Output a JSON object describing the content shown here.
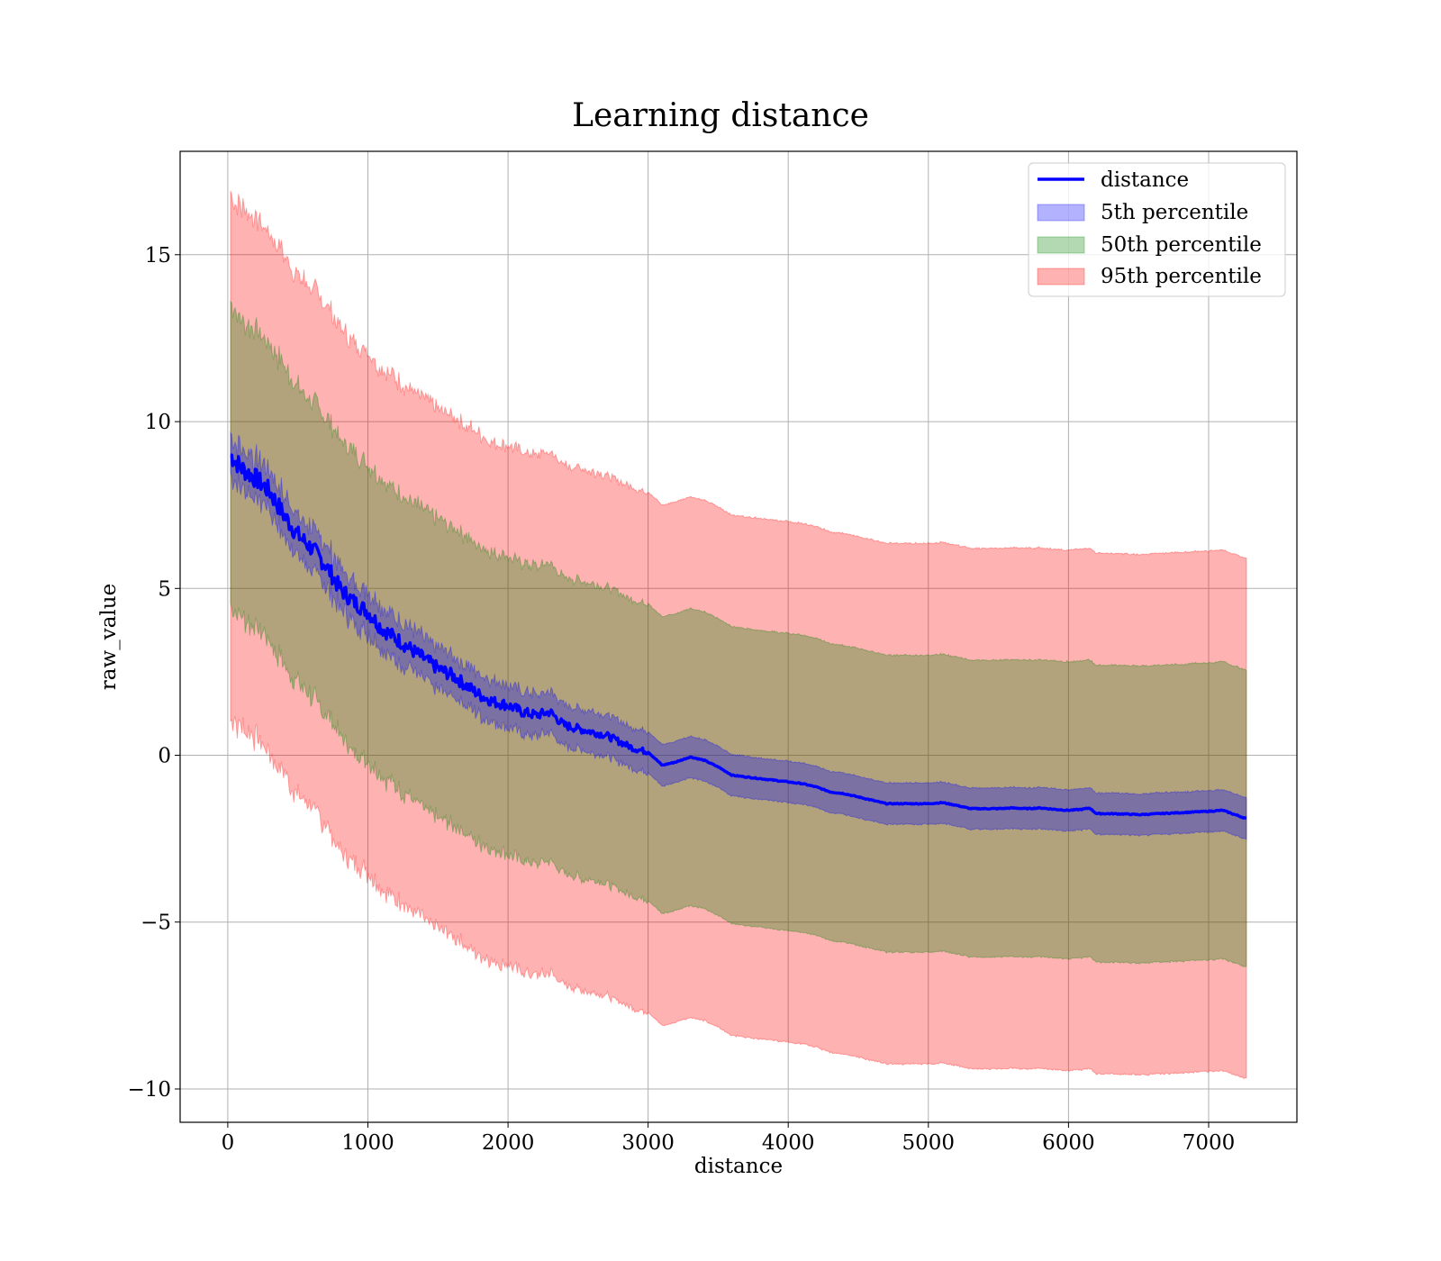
{
  "chart_data": {
    "type": "line",
    "title": "Learning distance",
    "xlabel": "distance",
    "ylabel": "raw_value",
    "xlim": [
      -340,
      7630
    ],
    "ylim": [
      -11,
      18.1
    ],
    "xticks": [
      0,
      1000,
      2000,
      3000,
      4000,
      5000,
      6000,
      7000
    ],
    "xtick_labels": [
      "0",
      "1000",
      "2000",
      "3000",
      "4000",
      "5000",
      "6000",
      "7000"
    ],
    "yticks": [
      -10,
      -5,
      0,
      5,
      10,
      15
    ],
    "ytick_labels": [
      "−10",
      "−5",
      "0",
      "5",
      "10",
      "15"
    ],
    "grid": true,
    "legend_position": "top-right",
    "x": [
      20,
      100,
      200,
      300,
      400,
      500,
      600,
      700,
      800,
      900,
      1000,
      1100,
      1200,
      1300,
      1400,
      1500,
      1600,
      1700,
      1800,
      1900,
      2000,
      2100,
      2200,
      2300,
      2400,
      2500,
      2600,
      2700,
      2800,
      2900,
      3000,
      3100,
      3200,
      3300,
      3400,
      3500,
      3600,
      3700,
      3800,
      3900,
      4000,
      4100,
      4200,
      4300,
      4400,
      4500,
      4600,
      4700,
      4800,
      4900,
      5000,
      5100,
      5200,
      5300,
      5400,
      5500,
      5600,
      5700,
      5800,
      5900,
      6000,
      6100,
      6150,
      6200,
      6300,
      6400,
      6500,
      6600,
      6700,
      6800,
      6900,
      7000,
      7100,
      7270
    ],
    "series": [
      {
        "name": "distance",
        "color": "#0000ff",
        "values": [
          9.0,
          8.6,
          8.3,
          7.9,
          7.2,
          6.6,
          6.2,
          5.7,
          5.0,
          4.6,
          4.3,
          3.8,
          3.5,
          3.2,
          2.9,
          2.6,
          2.4,
          2.1,
          1.8,
          1.6,
          1.5,
          1.3,
          1.2,
          1.3,
          0.9,
          0.8,
          0.7,
          0.6,
          0.4,
          0.2,
          0.1,
          -0.3,
          -0.2,
          -0.05,
          -0.15,
          -0.35,
          -0.6,
          -0.65,
          -0.7,
          -0.75,
          -0.8,
          -0.85,
          -0.95,
          -1.1,
          -1.15,
          -1.25,
          -1.35,
          -1.45,
          -1.45,
          -1.45,
          -1.45,
          -1.42,
          -1.5,
          -1.6,
          -1.6,
          -1.6,
          -1.58,
          -1.6,
          -1.58,
          -1.62,
          -1.65,
          -1.62,
          -1.58,
          -1.75,
          -1.75,
          -1.76,
          -1.78,
          -1.76,
          -1.74,
          -1.72,
          -1.7,
          -1.68,
          -1.65,
          -1.9
        ]
      },
      {
        "name": "5th percentile",
        "color": "#0000ff",
        "spread": 0.62
      },
      {
        "name": "50th percentile",
        "color": "#008000",
        "spread": 4.45
      },
      {
        "name": "95th percentile",
        "color": "#ff0000",
        "spread": 7.8
      }
    ]
  }
}
